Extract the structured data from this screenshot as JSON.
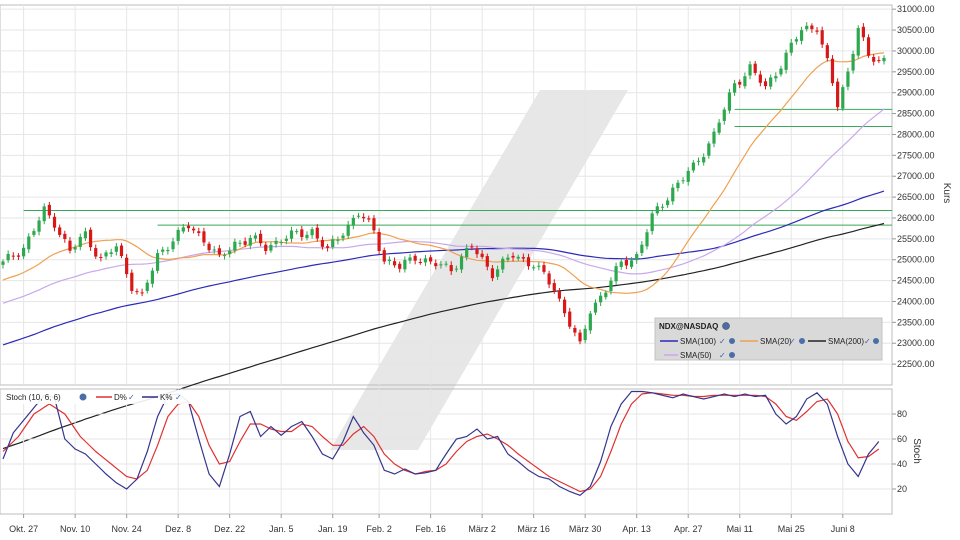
{
  "chart_data": [
    {
      "type": "candlestick",
      "title": "",
      "ylabel": "Kurs",
      "ylim": [
        22000,
        31100
      ],
      "y_ticks": [
        22500,
        23000,
        23500,
        24000,
        24500,
        25000,
        25500,
        26000,
        26500,
        27000,
        27500,
        28000,
        28500,
        29000,
        29500,
        30000,
        30500,
        31000
      ],
      "y_tick_labels": [
        "22500.00",
        "23000.00",
        "23500.00",
        "24000.00",
        "24500.00",
        "25000.00",
        "25500.00",
        "26000.00",
        "26500.00",
        "27000.00",
        "27500.00",
        "28000.00",
        "28500.00",
        "29000.00",
        "29500.00",
        "30000.00",
        "30500.00",
        "31000.00"
      ],
      "grid": true,
      "x_ticks": [
        "Okt. 27",
        "Nov. 10",
        "Nov. 24",
        "Dez. 8",
        "Dez. 22",
        "Jan. 5",
        "Jan. 19",
        "Feb. 2",
        "Feb. 16",
        "März 2",
        "März 16",
        "März 30",
        "Apr. 13",
        "Apr. 27",
        "Mai 11",
        "Mai 25",
        "Juni 8"
      ],
      "x_tick_index": [
        4,
        14,
        24,
        34,
        44,
        54,
        64,
        73,
        83,
        93,
        103,
        113,
        123,
        133,
        143,
        153,
        163
      ],
      "bar_count": 172,
      "anchors": [
        [
          0,
          24900
        ],
        [
          4,
          25300
        ],
        [
          8,
          26150
        ],
        [
          10,
          25900
        ],
        [
          13,
          25200
        ],
        [
          16,
          25600
        ],
        [
          19,
          25000
        ],
        [
          22,
          25300
        ],
        [
          25,
          24400
        ],
        [
          27,
          24100
        ],
        [
          30,
          25100
        ],
        [
          33,
          25500
        ],
        [
          36,
          25800
        ],
        [
          39,
          25500
        ],
        [
          42,
          25000
        ],
        [
          45,
          25400
        ],
        [
          48,
          25500
        ],
        [
          51,
          25300
        ],
        [
          54,
          25500
        ],
        [
          57,
          25600
        ],
        [
          60,
          25700
        ],
        [
          63,
          25200
        ],
        [
          66,
          25700
        ],
        [
          69,
          26100
        ],
        [
          72,
          25700
        ],
        [
          74,
          25000
        ],
        [
          77,
          24800
        ],
        [
          80,
          25100
        ],
        [
          83,
          24900
        ],
        [
          87,
          24800
        ],
        [
          91,
          25300
        ],
        [
          95,
          24700
        ],
        [
          99,
          25100
        ],
        [
          103,
          24900
        ],
        [
          107,
          24300
        ],
        [
          110,
          23500
        ],
        [
          112,
          22900
        ],
        [
          114,
          23800
        ],
        [
          117,
          24300
        ],
        [
          120,
          24900
        ],
        [
          123,
          25100
        ],
        [
          126,
          26000
        ],
        [
          130,
          26700
        ],
        [
          134,
          27200
        ],
        [
          138,
          28000
        ],
        [
          142,
          29200
        ],
        [
          145,
          29600
        ],
        [
          148,
          29100
        ],
        [
          151,
          29700
        ],
        [
          155,
          30500
        ],
        [
          158,
          30600
        ],
        [
          160,
          29700
        ],
        [
          162,
          28700
        ],
        [
          164,
          29500
        ],
        [
          166,
          30600
        ],
        [
          168,
          29800
        ]
      ],
      "horizontal_lines": [
        {
          "y": 26180,
          "from_index": 4,
          "to_index": 172,
          "color": "#3aa858"
        },
        {
          "y": 25830,
          "from_index": 30,
          "to_index": 172,
          "color": "#3aa858"
        },
        {
          "y": 28600,
          "from_index": 142,
          "to_index": 172,
          "color": "#3aa858"
        },
        {
          "y": 28190,
          "from_index": 142,
          "to_index": 172,
          "color": "#3aa858"
        }
      ],
      "legend_position": "bottom-right",
      "legend": {
        "symbol": "NDX@NASDAQ",
        "series": [
          {
            "name": "SMA(100)",
            "color": "#2b2bb8"
          },
          {
            "name": "SMA(20)",
            "color": "#f0a050"
          },
          {
            "name": "SMA(200)",
            "color": "#222222"
          },
          {
            "name": "SMA(50)",
            "color": "#c8a8ec"
          }
        ]
      },
      "colors": {
        "up": "#2ea84e",
        "down": "#d81818",
        "sma20": "#f0a050",
        "sma50": "#c8a8ec",
        "sma100": "#2b2bb8",
        "sma200": "#222222"
      },
      "prehistory": [
        [
          -200,
          16500
        ],
        [
          -150,
          17800
        ],
        [
          -120,
          18500
        ],
        [
          -100,
          21000
        ],
        [
          -60,
          22500
        ],
        [
          -30,
          23800
        ],
        [
          -1,
          24800
        ]
      ]
    },
    {
      "type": "line",
      "title": "",
      "ylabel": "Stoch",
      "ylim": [
        0,
        100
      ],
      "y_ticks": [
        20,
        40,
        60,
        80
      ],
      "y_tick_labels": [
        "20",
        "40",
        "60",
        "80"
      ],
      "legend_position": "top-left",
      "legend": {
        "params": "Stoch (10, 6, 6)",
        "series": [
          {
            "name": "D%",
            "color": "#e03030"
          },
          {
            "name": "K%",
            "color": "#2b2b8a"
          }
        ]
      },
      "series": [
        {
          "name": "K%",
          "color": "#34348e",
          "anchors": [
            [
              0,
              44
            ],
            [
              2,
              65
            ],
            [
              5,
              80
            ],
            [
              8,
              95
            ],
            [
              10,
              93
            ],
            [
              12,
              60
            ],
            [
              14,
              52
            ],
            [
              16,
              48
            ],
            [
              18,
              40
            ],
            [
              20,
              32
            ],
            [
              22,
              25
            ],
            [
              24,
              20
            ],
            [
              26,
              28
            ],
            [
              28,
              50
            ],
            [
              30,
              78
            ],
            [
              32,
              95
            ],
            [
              34,
              96
            ],
            [
              36,
              90
            ],
            [
              38,
              60
            ],
            [
              40,
              32
            ],
            [
              42,
              22
            ],
            [
              44,
              48
            ],
            [
              46,
              78
            ],
            [
              48,
              82
            ],
            [
              50,
              62
            ],
            [
              52,
              70
            ],
            [
              54,
              63
            ],
            [
              56,
              70
            ],
            [
              58,
              74
            ],
            [
              60,
              62
            ],
            [
              62,
              48
            ],
            [
              64,
              44
            ],
            [
              66,
              58
            ],
            [
              68,
              78
            ],
            [
              70,
              65
            ],
            [
              72,
              55
            ],
            [
              74,
              35
            ],
            [
              76,
              32
            ],
            [
              78,
              36
            ],
            [
              80,
              32
            ],
            [
              82,
              33
            ],
            [
              84,
              35
            ],
            [
              86,
              48
            ],
            [
              88,
              60
            ],
            [
              90,
              62
            ],
            [
              92,
              68
            ],
            [
              94,
              60
            ],
            [
              96,
              62
            ],
            [
              98,
              48
            ],
            [
              100,
              42
            ],
            [
              102,
              35
            ],
            [
              104,
              30
            ],
            [
              106,
              28
            ],
            [
              108,
              22
            ],
            [
              110,
              18
            ],
            [
              112,
              15
            ],
            [
              114,
              22
            ],
            [
              116,
              42
            ],
            [
              118,
              70
            ],
            [
              120,
              88
            ],
            [
              122,
              98
            ],
            [
              124,
              98
            ],
            [
              126,
              97
            ],
            [
              128,
              95
            ],
            [
              130,
              93
            ],
            [
              132,
              96
            ],
            [
              134,
              94
            ],
            [
              136,
              92
            ],
            [
              138,
              94
            ],
            [
              140,
              96
            ],
            [
              142,
              94
            ],
            [
              144,
              96
            ],
            [
              146,
              94
            ],
            [
              148,
              95
            ],
            [
              150,
              80
            ],
            [
              152,
              72
            ],
            [
              154,
              78
            ],
            [
              156,
              92
            ],
            [
              158,
              97
            ],
            [
              160,
              88
            ],
            [
              162,
              62
            ],
            [
              164,
              40
            ],
            [
              166,
              30
            ],
            [
              168,
              48
            ],
            [
              170,
              58
            ]
          ]
        },
        {
          "name": "D%",
          "color": "#e03030",
          "anchors": [
            [
              0,
              50
            ],
            [
              3,
              62
            ],
            [
              6,
              80
            ],
            [
              9,
              88
            ],
            [
              12,
              80
            ],
            [
              15,
              62
            ],
            [
              18,
              50
            ],
            [
              21,
              40
            ],
            [
              24,
              30
            ],
            [
              26,
              28
            ],
            [
              28,
              35
            ],
            [
              30,
              55
            ],
            [
              32,
              78
            ],
            [
              34,
              88
            ],
            [
              36,
              90
            ],
            [
              38,
              78
            ],
            [
              40,
              55
            ],
            [
              42,
              40
            ],
            [
              44,
              42
            ],
            [
              46,
              58
            ],
            [
              48,
              72
            ],
            [
              50,
              72
            ],
            [
              52,
              68
            ],
            [
              54,
              66
            ],
            [
              56,
              66
            ],
            [
              58,
              72
            ],
            [
              60,
              70
            ],
            [
              62,
              62
            ],
            [
              64,
              55
            ],
            [
              66,
              55
            ],
            [
              68,
              64
            ],
            [
              70,
              70
            ],
            [
              72,
              62
            ],
            [
              74,
              48
            ],
            [
              76,
              40
            ],
            [
              78,
              35
            ],
            [
              80,
              32
            ],
            [
              82,
              34
            ],
            [
              84,
              35
            ],
            [
              86,
              40
            ],
            [
              88,
              50
            ],
            [
              90,
              58
            ],
            [
              92,
              62
            ],
            [
              94,
              64
            ],
            [
              96,
              60
            ],
            [
              98,
              55
            ],
            [
              100,
              48
            ],
            [
              102,
              42
            ],
            [
              104,
              36
            ],
            [
              106,
              30
            ],
            [
              108,
              26
            ],
            [
              110,
              22
            ],
            [
              112,
              18
            ],
            [
              114,
              20
            ],
            [
              116,
              30
            ],
            [
              118,
              50
            ],
            [
              120,
              72
            ],
            [
              122,
              88
            ],
            [
              124,
              96
            ],
            [
              126,
              97
            ],
            [
              128,
              96
            ],
            [
              130,
              95
            ],
            [
              132,
              95
            ],
            [
              134,
              94
            ],
            [
              136,
              94
            ],
            [
              138,
              95
            ],
            [
              140,
              95
            ],
            [
              142,
              95
            ],
            [
              144,
              95
            ],
            [
              146,
              95
            ],
            [
              148,
              94
            ],
            [
              150,
              88
            ],
            [
              152,
              78
            ],
            [
              154,
              75
            ],
            [
              156,
              82
            ],
            [
              158,
              90
            ],
            [
              160,
              92
            ],
            [
              162,
              80
            ],
            [
              164,
              58
            ],
            [
              166,
              45
            ],
            [
              168,
              46
            ],
            [
              170,
              52
            ]
          ]
        }
      ]
    }
  ]
}
